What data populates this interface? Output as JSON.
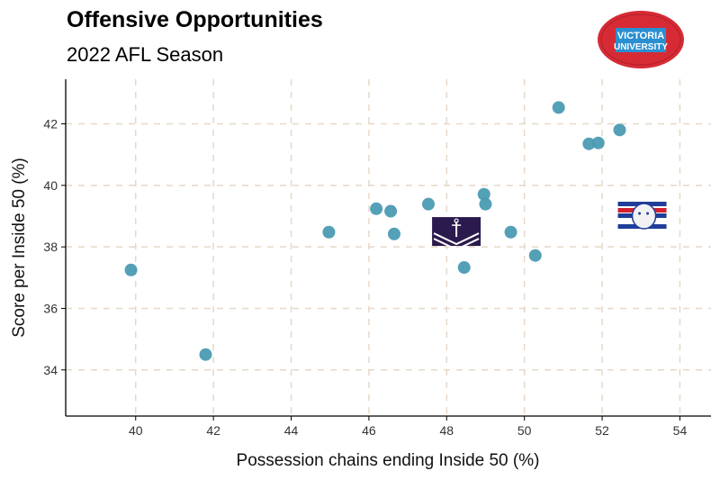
{
  "chart_data": {
    "type": "scatter",
    "title": "Offensive Opportunities",
    "subtitle": "2022 AFL Season",
    "xlabel": "Possession chains ending Inside 50 (%)",
    "ylabel": "Score per Inside 50 (%)",
    "xlim": [
      38.2,
      54.8
    ],
    "ylim": [
      32.5,
      43.45
    ],
    "xticks": [
      40,
      42,
      44,
      46,
      48,
      50,
      52,
      54
    ],
    "yticks": [
      34,
      36,
      38,
      40,
      42
    ],
    "grid": true,
    "point_color": "#4a9bb3",
    "points": [
      {
        "x": 39.88,
        "y": 37.25
      },
      {
        "x": 41.8,
        "y": 34.5
      },
      {
        "x": 44.97,
        "y": 38.48
      },
      {
        "x": 46.19,
        "y": 39.24
      },
      {
        "x": 46.56,
        "y": 39.16
      },
      {
        "x": 46.65,
        "y": 38.42
      },
      {
        "x": 47.53,
        "y": 39.39
      },
      {
        "x": 48.45,
        "y": 37.33
      },
      {
        "x": 48.96,
        "y": 39.71
      },
      {
        "x": 49.0,
        "y": 39.39
      },
      {
        "x": 49.65,
        "y": 38.48
      },
      {
        "x": 50.28,
        "y": 37.72
      },
      {
        "x": 50.88,
        "y": 42.53
      },
      {
        "x": 51.66,
        "y": 41.35
      },
      {
        "x": 51.9,
        "y": 41.38
      },
      {
        "x": 52.45,
        "y": 41.8
      }
    ],
    "logo_points": [
      {
        "team": "fremantle-logo",
        "x": 48.25,
        "y": 38.5
      },
      {
        "team": "western-bulldogs-logo",
        "x": 53.03,
        "y": 39.0
      }
    ]
  },
  "branding": {
    "logo_text_line1": "VICTORIA",
    "logo_text_line2": "UNIVERSITY"
  }
}
